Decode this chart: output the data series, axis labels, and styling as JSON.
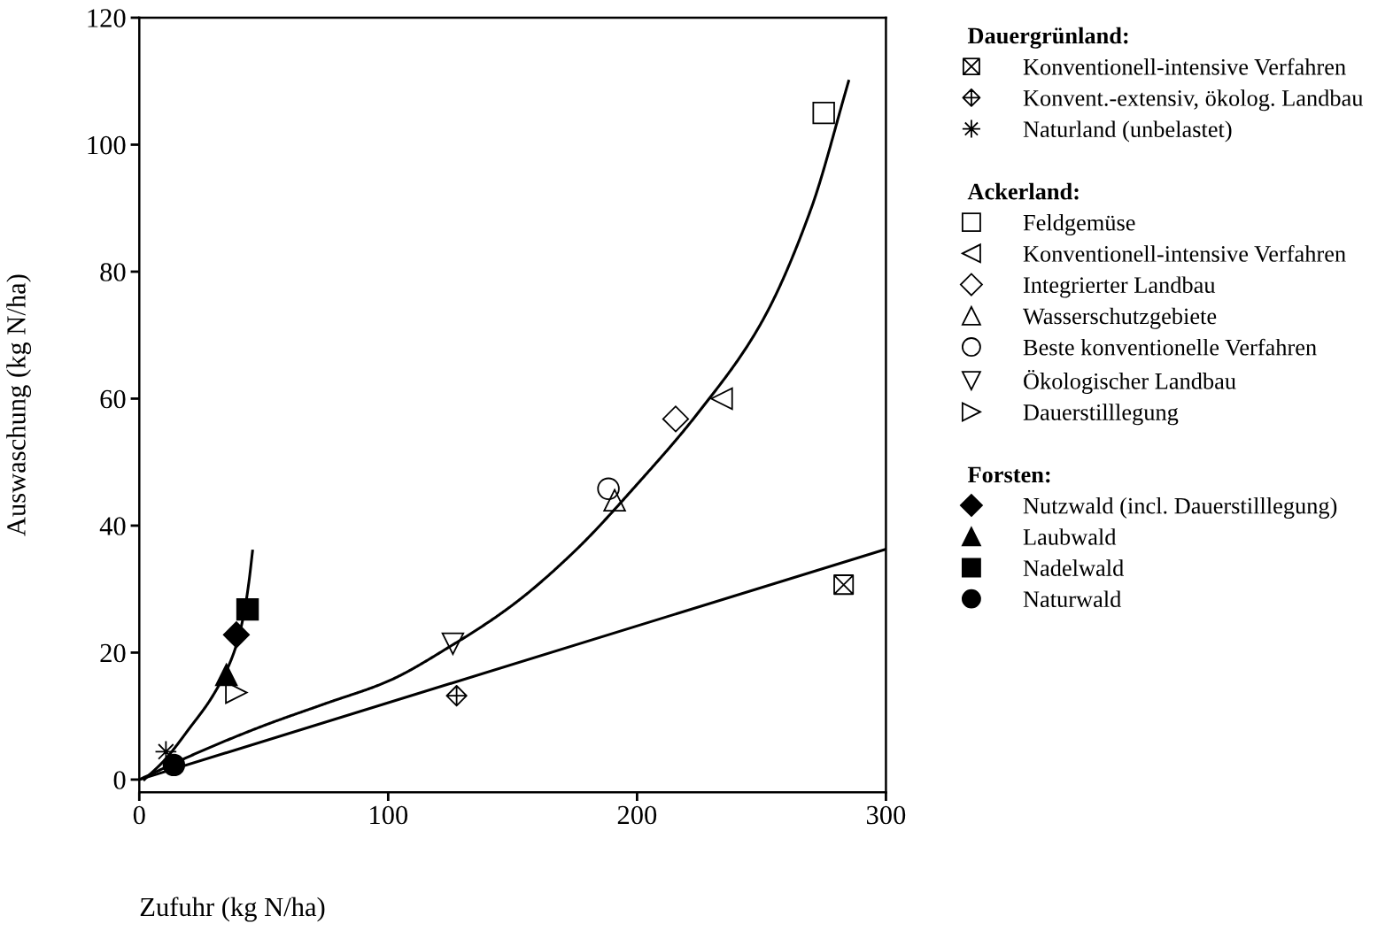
{
  "chart_data": {
    "type": "scatter",
    "xlabel": "Zufuhr (kg N/ha)",
    "ylabel": "Auswaschung (kg N/ha)",
    "xlim": [
      0,
      300
    ],
    "ylim": [
      -2,
      120
    ],
    "xticks": [
      0,
      100,
      200,
      300
    ],
    "yticks": [
      0,
      20,
      40,
      60,
      80,
      100,
      120
    ],
    "grid": false,
    "legend": "right",
    "annotations": [
      "Dauergrünland:",
      "Ackerland:",
      "Forsten:"
    ],
    "series": [
      {
        "name": "Konventionell-intensive Verfahren",
        "marker": "cross",
        "color": "#000000",
        "x": [
          283
        ],
        "values": [
          30.7
        ]
      },
      {
        "name": "Konvent.-extensiv, ökolog. Landbau",
        "marker": "cross",
        "color": "#000000",
        "x": [
          127.5
        ],
        "values": [
          13.2
        ]
      },
      {
        "name": "Naturland (unbelastet)",
        "marker": "cross",
        "color": "#000000",
        "x": [
          10.7
        ],
        "values": [
          4.4
        ]
      },
      {
        "name": "Feldgemüse",
        "marker": "square",
        "color": "#000000",
        "x": [
          275
        ],
        "values": [
          105
        ]
      },
      {
        "name": "Konventionell-intensive Verfahren",
        "marker": "triangle_left",
        "color": "#000000",
        "x": [
          234
        ],
        "values": [
          60
        ]
      },
      {
        "name": "Integrierter Landbau",
        "marker": "diamond",
        "color": "#000000",
        "x": [
          215.5
        ],
        "values": [
          56.8
        ]
      },
      {
        "name": "Wasserschutzgebiete",
        "marker": "triangle",
        "color": "#000000",
        "x": [
          191
        ],
        "values": [
          44
        ]
      },
      {
        "name": "Beste konventionelle Verfahren",
        "marker": "circle",
        "color": "#000000",
        "x": [
          188.5
        ],
        "values": [
          45.8
        ]
      },
      {
        "name": "Ökologischer Landbau",
        "marker": "triangle_down",
        "color": "#000000",
        "x": [
          126
        ],
        "values": [
          21.4
        ]
      },
      {
        "name": "Dauerstilllegung",
        "marker": "triangle_right",
        "color": "#000000",
        "x": [
          39
        ],
        "values": [
          13.7
        ]
      },
      {
        "name": "Nutzwald (incl. Dauerstilllegung)",
        "marker": "diamond",
        "color": "#000000",
        "x": [
          39
        ],
        "values": [
          22.8
        ]
      },
      {
        "name": "Laubwald",
        "marker": "triangle",
        "color": "#000000",
        "x": [
          35
        ],
        "values": [
          16.5
        ]
      },
      {
        "name": "Nadelwald",
        "marker": "square",
        "color": "#000000",
        "x": [
          43.5
        ],
        "values": [
          26.8
        ]
      },
      {
        "name": "Naturwald",
        "marker": "circle",
        "color": "#000000",
        "x": [
          13.9
        ],
        "values": [
          2.3
        ]
      },
      {
        "type": "line",
        "color": "#000000",
        "line_style": "solid",
        "x": [
          0,
          300
        ],
        "values": [
          0,
          36.3
        ]
      },
      {
        "type": "line",
        "color": "#000000",
        "line_style": "solid",
        "x": [
          0,
          25,
          50,
          75,
          100,
          125,
          150,
          175,
          200,
          225,
          250,
          270,
          285
        ],
        "values": [
          0,
          4.5,
          8.5,
          12,
          15.5,
          21,
          27.5,
          36,
          46.5,
          58,
          72,
          90,
          110
        ]
      },
      {
        "type": "line",
        "color": "#000000",
        "line_style": "solid",
        "x": [
          2,
          10,
          20,
          30,
          38,
          42,
          44,
          45.5
        ],
        "values": [
          0,
          3,
          8,
          13.5,
          20,
          26,
          31,
          36
        ]
      }
    ]
  }
}
